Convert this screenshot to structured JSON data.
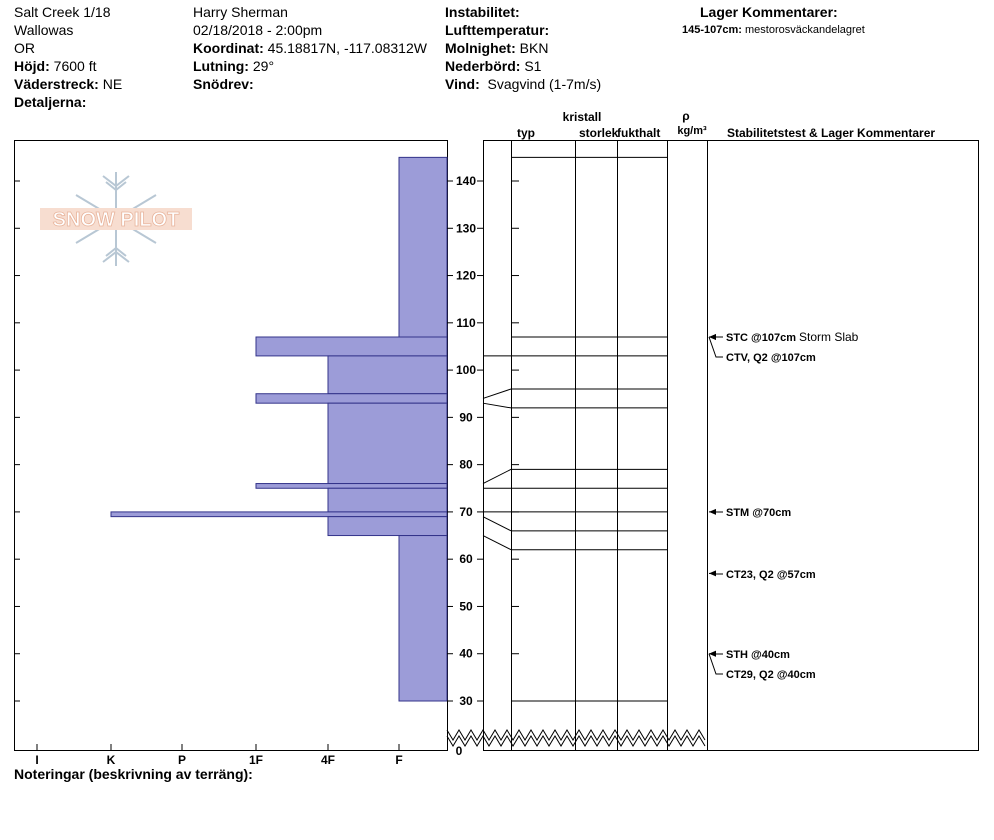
{
  "header": {
    "col1": {
      "location": "Salt Creek 1/18",
      "range": "Wallowas",
      "state": "OR",
      "elevation_label": "Höjd:",
      "elevation": "7600 ft",
      "aspect_label": "Väderstreck:",
      "aspect": "NE",
      "details_label": "Detaljerna:"
    },
    "col2": {
      "observer": "Harry Sherman",
      "datetime": "02/18/2018 - 2:00pm",
      "coord_label": "Koordinat:",
      "coord": "45.18817N, -117.08312W",
      "slope_label": "Lutning:",
      "slope": "29°",
      "drift_label": "Snödrev:"
    },
    "col3": {
      "instability_label": "Instabilitet:",
      "airtemp_label": "Lufttemperatur:",
      "sky_label": "Molnighet:",
      "sky": "BKN",
      "precip_label": "Nederbörd:",
      "precip": "S1",
      "wind_label": "Vind:",
      "wind": "Svagvind (1-7m/s)"
    },
    "col4": {
      "title": "Lager Kommentarer:",
      "comment_depth": "145-107cm:",
      "comment_text": "mestorosväckandelagret"
    }
  },
  "columns": {
    "crystal": "kristall",
    "type": "typ",
    "size": "storlek",
    "moisture": "fukthalt",
    "rho": "ρ",
    "density_unit": "kg/m³",
    "stability": "Stabilitetstest & Lager Kommentarer"
  },
  "notes_label": "Noteringar (beskrivning av terräng):",
  "logo_text": "SNOW PILOT",
  "colors": {
    "hardness_fill": "#9c9cd8",
    "hardness_stroke": "#33338a",
    "logo": "#f2c9b6"
  },
  "chart_data": {
    "type": "bar",
    "orientation": "horizontal",
    "y_axis": "depth_cm",
    "ylim": [
      0,
      148
    ],
    "ytick_values": [
      30,
      40,
      50,
      60,
      70,
      80,
      90,
      100,
      110,
      120,
      130,
      140
    ],
    "ytick_labels": [
      "30",
      "40",
      "50",
      "60",
      "70",
      "80",
      "90",
      "100",
      "110",
      "120",
      "130",
      "140"
    ],
    "y_zero_label": "0",
    "hardness_scale": [
      "I",
      "K",
      "P",
      "1F",
      "4F",
      "F"
    ],
    "hardness_layers": [
      {
        "top": 145,
        "bottom": 107,
        "hardness": "F"
      },
      {
        "top": 107,
        "bottom": 103,
        "hardness": "1F"
      },
      {
        "top": 103,
        "bottom": 95,
        "hardness": "4F"
      },
      {
        "top": 95,
        "bottom": 93,
        "hardness": "1F"
      },
      {
        "top": 93,
        "bottom": 76,
        "hardness": "4F"
      },
      {
        "top": 76,
        "bottom": 75,
        "hardness": "1F"
      },
      {
        "top": 75,
        "bottom": 70,
        "hardness": "4F"
      },
      {
        "top": 70,
        "bottom": 69,
        "hardness": "K"
      },
      {
        "top": 69,
        "bottom": 65,
        "hardness": "4F"
      },
      {
        "top": 65,
        "bottom": 30,
        "hardness": "F"
      }
    ],
    "layer_boundaries": [
      145,
      107,
      103,
      96,
      92,
      79,
      75,
      70,
      66,
      62,
      30
    ],
    "boundary_skew": [
      {
        "left": 103,
        "right": 103
      },
      {
        "left": 94,
        "right": 96
      },
      {
        "left": 93,
        "right": 92
      },
      {
        "left": 76,
        "right": 79
      },
      {
        "left": 75,
        "right": 75
      },
      {
        "left": 70,
        "right": 70
      },
      {
        "left": 69,
        "right": 66
      },
      {
        "left": 65,
        "right": 62
      }
    ],
    "stability_tests": [
      {
        "text": "STC @107cm",
        "extra": "Storm Slab",
        "depth": 107
      },
      {
        "text": "CTV, Q2 @107cm",
        "depth": 107
      },
      {
        "text": "STM @70cm",
        "depth": 70
      },
      {
        "text": "CT23, Q2 @57cm",
        "depth": 57
      },
      {
        "text": "STH @40cm",
        "depth": 40
      },
      {
        "text": "CT29, Q2 @40cm",
        "depth": 40
      }
    ]
  }
}
